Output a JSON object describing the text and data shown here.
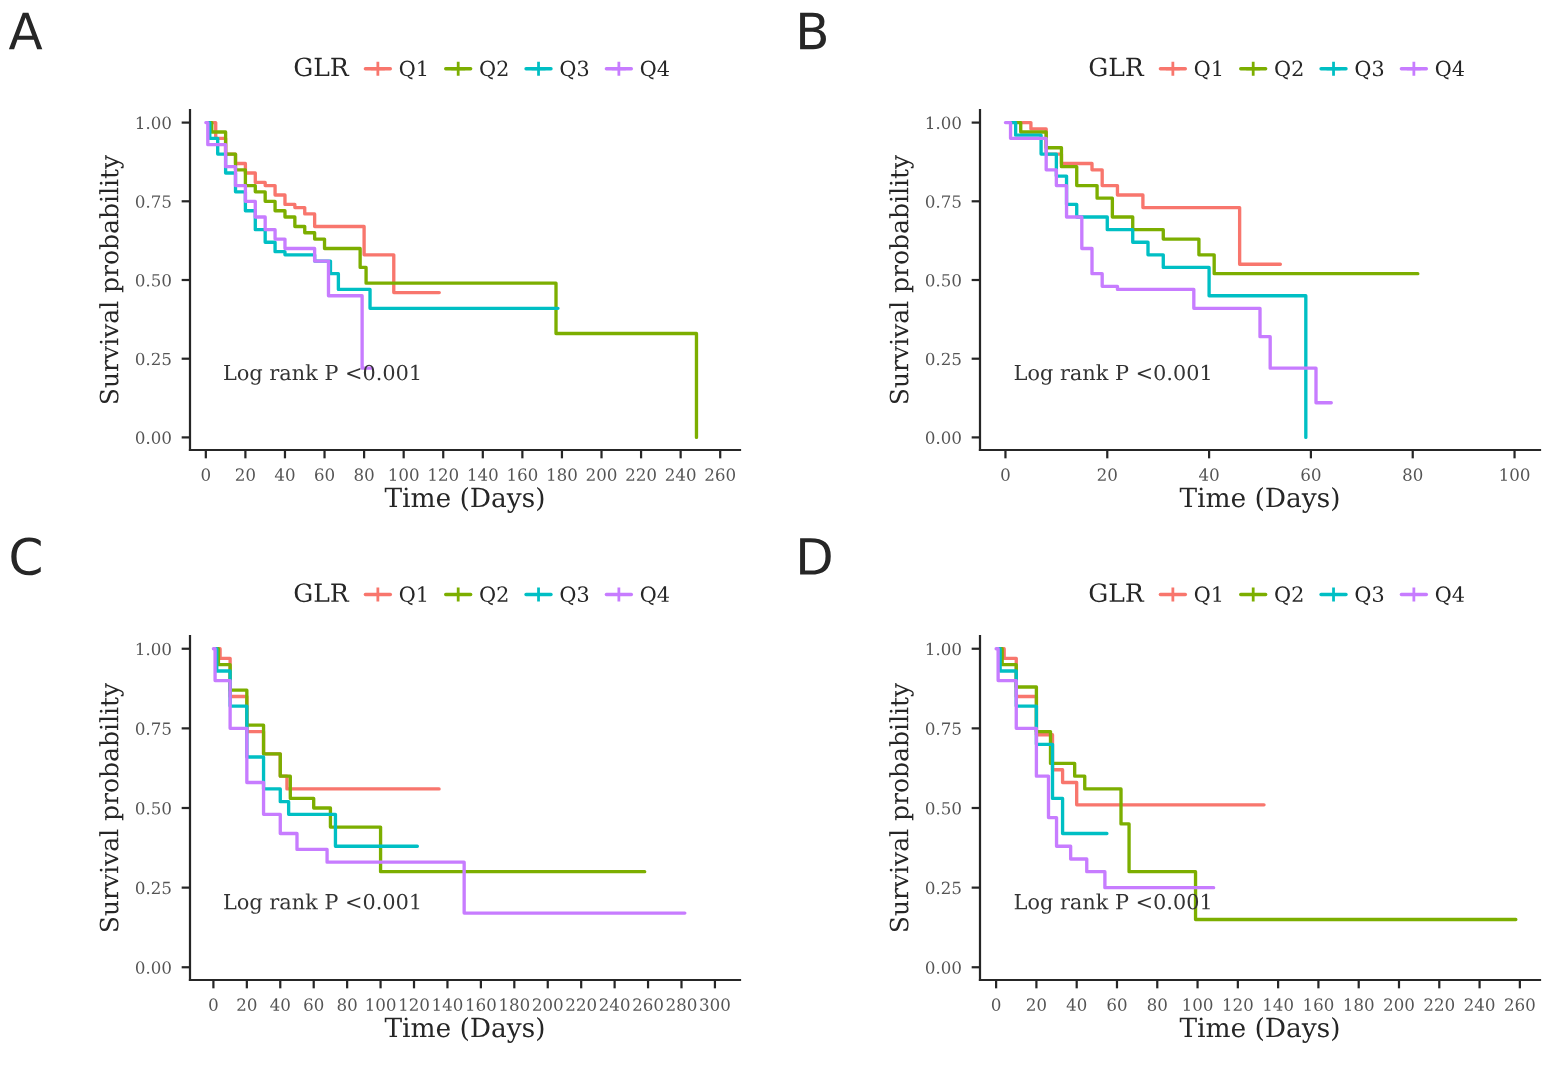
{
  "chart_data": [
    {
      "type": "step",
      "title": "A",
      "xlabel": "Time (Days)",
      "ylabel": "Survival probability",
      "legend_title": "GLR",
      "legend": "top",
      "xlim": [
        -8,
        270
      ],
      "ylim": [
        -0.04,
        1.04
      ],
      "xticks": [
        0,
        20,
        40,
        60,
        80,
        100,
        120,
        140,
        160,
        180,
        200,
        220,
        240,
        260
      ],
      "yticks": [
        {
          "value": 0,
          "label": "0.00"
        },
        {
          "value": 0.25,
          "label": "0.25"
        },
        {
          "value": 0.5,
          "label": "0.50"
        },
        {
          "value": 0.75,
          "label": "0.75"
        },
        {
          "value": 1,
          "label": "1.00"
        }
      ],
      "annotations": [
        "Log rank P <0.001"
      ],
      "series": [
        {
          "name": "Q1",
          "color": "#f8766d",
          "x": [
            3,
            5,
            10,
            15,
            20,
            25,
            30,
            35,
            40,
            45,
            50,
            55,
            80,
            95,
            118
          ],
          "values": [
            1.0,
            0.95,
            0.9,
            0.87,
            0.84,
            0.81,
            0.8,
            0.77,
            0.74,
            0.73,
            0.71,
            0.67,
            0.58,
            0.46,
            0.46
          ]
        },
        {
          "name": "Q2",
          "color": "#7cae00",
          "x": [
            2,
            3,
            10,
            15,
            20,
            25,
            30,
            35,
            40,
            45,
            50,
            55,
            60,
            78,
            81,
            177,
            248
          ],
          "values": [
            1.0,
            0.97,
            0.9,
            0.85,
            0.8,
            0.78,
            0.75,
            0.72,
            0.7,
            0.67,
            0.65,
            0.63,
            0.6,
            0.54,
            0.49,
            0.33,
            0.0
          ]
        },
        {
          "name": "Q3",
          "color": "#00bfc4",
          "x": [
            1,
            2,
            6,
            10,
            15,
            20,
            25,
            30,
            35,
            40,
            55,
            63,
            67,
            83,
            178
          ],
          "values": [
            1.0,
            0.95,
            0.9,
            0.84,
            0.78,
            0.72,
            0.66,
            0.62,
            0.59,
            0.58,
            0.56,
            0.52,
            0.47,
            0.41,
            0.41
          ]
        },
        {
          "name": "Q4",
          "color": "#c77cff",
          "x": [
            0,
            1,
            10,
            15,
            20,
            25,
            30,
            35,
            40,
            55,
            62,
            79,
            84
          ],
          "values": [
            1.0,
            0.93,
            0.86,
            0.8,
            0.75,
            0.7,
            0.66,
            0.63,
            0.6,
            0.56,
            0.45,
            0.22,
            0.22
          ]
        }
      ]
    },
    {
      "type": "step",
      "title": "B",
      "xlabel": "Time (Days)",
      "ylabel": "Survival probability",
      "legend_title": "GLR",
      "legend": "top",
      "xlim": [
        -5,
        105
      ],
      "ylim": [
        -0.04,
        1.04
      ],
      "xticks": [
        0,
        20,
        40,
        60,
        80,
        100
      ],
      "yticks": [
        {
          "value": 0,
          "label": "0.00"
        },
        {
          "value": 0.25,
          "label": "0.25"
        },
        {
          "value": 0.5,
          "label": "0.50"
        },
        {
          "value": 0.75,
          "label": "0.75"
        },
        {
          "value": 1,
          "label": "1.00"
        }
      ],
      "annotations": [
        "Log rank P <0.001"
      ],
      "series": [
        {
          "name": "Q1",
          "color": "#f8766d",
          "x": [
            3,
            5,
            8,
            11,
            17,
            19,
            22,
            27,
            46,
            54
          ],
          "values": [
            1.0,
            0.98,
            0.9,
            0.87,
            0.85,
            0.8,
            0.77,
            0.73,
            0.55,
            0.55
          ]
        },
        {
          "name": "Q2",
          "color": "#7cae00",
          "x": [
            2,
            3,
            8,
            11,
            14,
            18,
            21,
            25,
            31,
            38,
            41,
            81
          ],
          "values": [
            1.0,
            0.97,
            0.92,
            0.86,
            0.8,
            0.76,
            0.7,
            0.66,
            0.63,
            0.58,
            0.52,
            0.52
          ]
        },
        {
          "name": "Q3",
          "color": "#00bfc4",
          "x": [
            1,
            2,
            7,
            10,
            12,
            14,
            20,
            25,
            28,
            31,
            40,
            59
          ],
          "values": [
            1.0,
            0.96,
            0.9,
            0.83,
            0.74,
            0.7,
            0.66,
            0.62,
            0.58,
            0.54,
            0.45,
            0.0
          ]
        },
        {
          "name": "Q4",
          "color": "#c77cff",
          "x": [
            0,
            1,
            8,
            10,
            12,
            15,
            17,
            19,
            22,
            37,
            50,
            52,
            61,
            64
          ],
          "values": [
            1.0,
            0.95,
            0.85,
            0.8,
            0.7,
            0.6,
            0.52,
            0.48,
            0.47,
            0.41,
            0.32,
            0.22,
            0.11,
            0.11
          ]
        }
      ]
    },
    {
      "type": "step",
      "title": "C",
      "xlabel": "Time (Days)",
      "ylabel": "Survival probability",
      "legend_title": "GLR",
      "legend": "top",
      "xlim": [
        -14,
        315
      ],
      "ylim": [
        -0.04,
        1.04
      ],
      "xticks": [
        0,
        20,
        40,
        60,
        80,
        100,
        120,
        140,
        160,
        180,
        200,
        220,
        240,
        260,
        280,
        300
      ],
      "yticks": [
        {
          "value": 0,
          "label": "0.00"
        },
        {
          "value": 0.25,
          "label": "0.25"
        },
        {
          "value": 0.5,
          "label": "0.50"
        },
        {
          "value": 0.75,
          "label": "0.75"
        },
        {
          "value": 1,
          "label": "1.00"
        }
      ],
      "annotations": [
        "Log rank P <0.001"
      ],
      "series": [
        {
          "name": "Q1",
          "color": "#f8766d",
          "x": [
            3,
            4,
            10,
            20,
            30,
            40,
            44,
            135
          ],
          "values": [
            1.0,
            0.97,
            0.85,
            0.74,
            0.67,
            0.6,
            0.56,
            0.56
          ]
        },
        {
          "name": "Q2",
          "color": "#7cae00",
          "x": [
            2,
            3,
            10,
            20,
            30,
            40,
            46,
            60,
            70,
            100,
            258
          ],
          "values": [
            1.0,
            0.95,
            0.87,
            0.76,
            0.67,
            0.6,
            0.53,
            0.5,
            0.44,
            0.3,
            0.3
          ]
        },
        {
          "name": "Q3",
          "color": "#00bfc4",
          "x": [
            1,
            2,
            10,
            20,
            30,
            40,
            45,
            73,
            122
          ],
          "values": [
            1.0,
            0.93,
            0.82,
            0.66,
            0.56,
            0.52,
            0.48,
            0.38,
            0.38
          ]
        },
        {
          "name": "Q4",
          "color": "#c77cff",
          "x": [
            0,
            1,
            10,
            20,
            30,
            40,
            50,
            68,
            150,
            282
          ],
          "values": [
            1.0,
            0.9,
            0.75,
            0.58,
            0.48,
            0.42,
            0.37,
            0.33,
            0.17,
            0.17
          ]
        }
      ]
    },
    {
      "type": "step",
      "title": "D",
      "xlabel": "Time (Days)",
      "ylabel": "Survival probability",
      "legend_title": "GLR",
      "legend": "top",
      "xlim": [
        -8,
        270
      ],
      "ylim": [
        -0.04,
        1.04
      ],
      "xticks": [
        0,
        20,
        40,
        60,
        80,
        100,
        120,
        140,
        160,
        180,
        200,
        220,
        240,
        260
      ],
      "yticks": [
        {
          "value": 0,
          "label": "0.00"
        },
        {
          "value": 0.25,
          "label": "0.25"
        },
        {
          "value": 0.5,
          "label": "0.50"
        },
        {
          "value": 0.75,
          "label": "0.75"
        },
        {
          "value": 1,
          "label": "1.00"
        }
      ],
      "annotations": [
        "Log rank P <0.001"
      ],
      "series": [
        {
          "name": "Q1",
          "color": "#f8766d",
          "x": [
            3,
            4,
            10,
            20,
            28,
            33,
            40,
            133
          ],
          "values": [
            1.0,
            0.97,
            0.85,
            0.73,
            0.62,
            0.58,
            0.51,
            0.51
          ]
        },
        {
          "name": "Q2",
          "color": "#7cae00",
          "x": [
            2,
            3,
            10,
            20,
            27,
            39,
            44,
            62,
            66,
            99,
            258
          ],
          "values": [
            1.0,
            0.95,
            0.88,
            0.74,
            0.64,
            0.6,
            0.56,
            0.45,
            0.3,
            0.15,
            0.15
          ]
        },
        {
          "name": "Q3",
          "color": "#00bfc4",
          "x": [
            1,
            2,
            10,
            20,
            28,
            33,
            55
          ],
          "values": [
            1.0,
            0.93,
            0.82,
            0.7,
            0.53,
            0.42,
            0.42
          ]
        },
        {
          "name": "Q4",
          "color": "#c77cff",
          "x": [
            0,
            1,
            10,
            20,
            26,
            30,
            37,
            45,
            54,
            108
          ],
          "values": [
            1.0,
            0.9,
            0.75,
            0.6,
            0.47,
            0.38,
            0.34,
            0.3,
            0.25,
            0.25
          ]
        }
      ]
    }
  ]
}
